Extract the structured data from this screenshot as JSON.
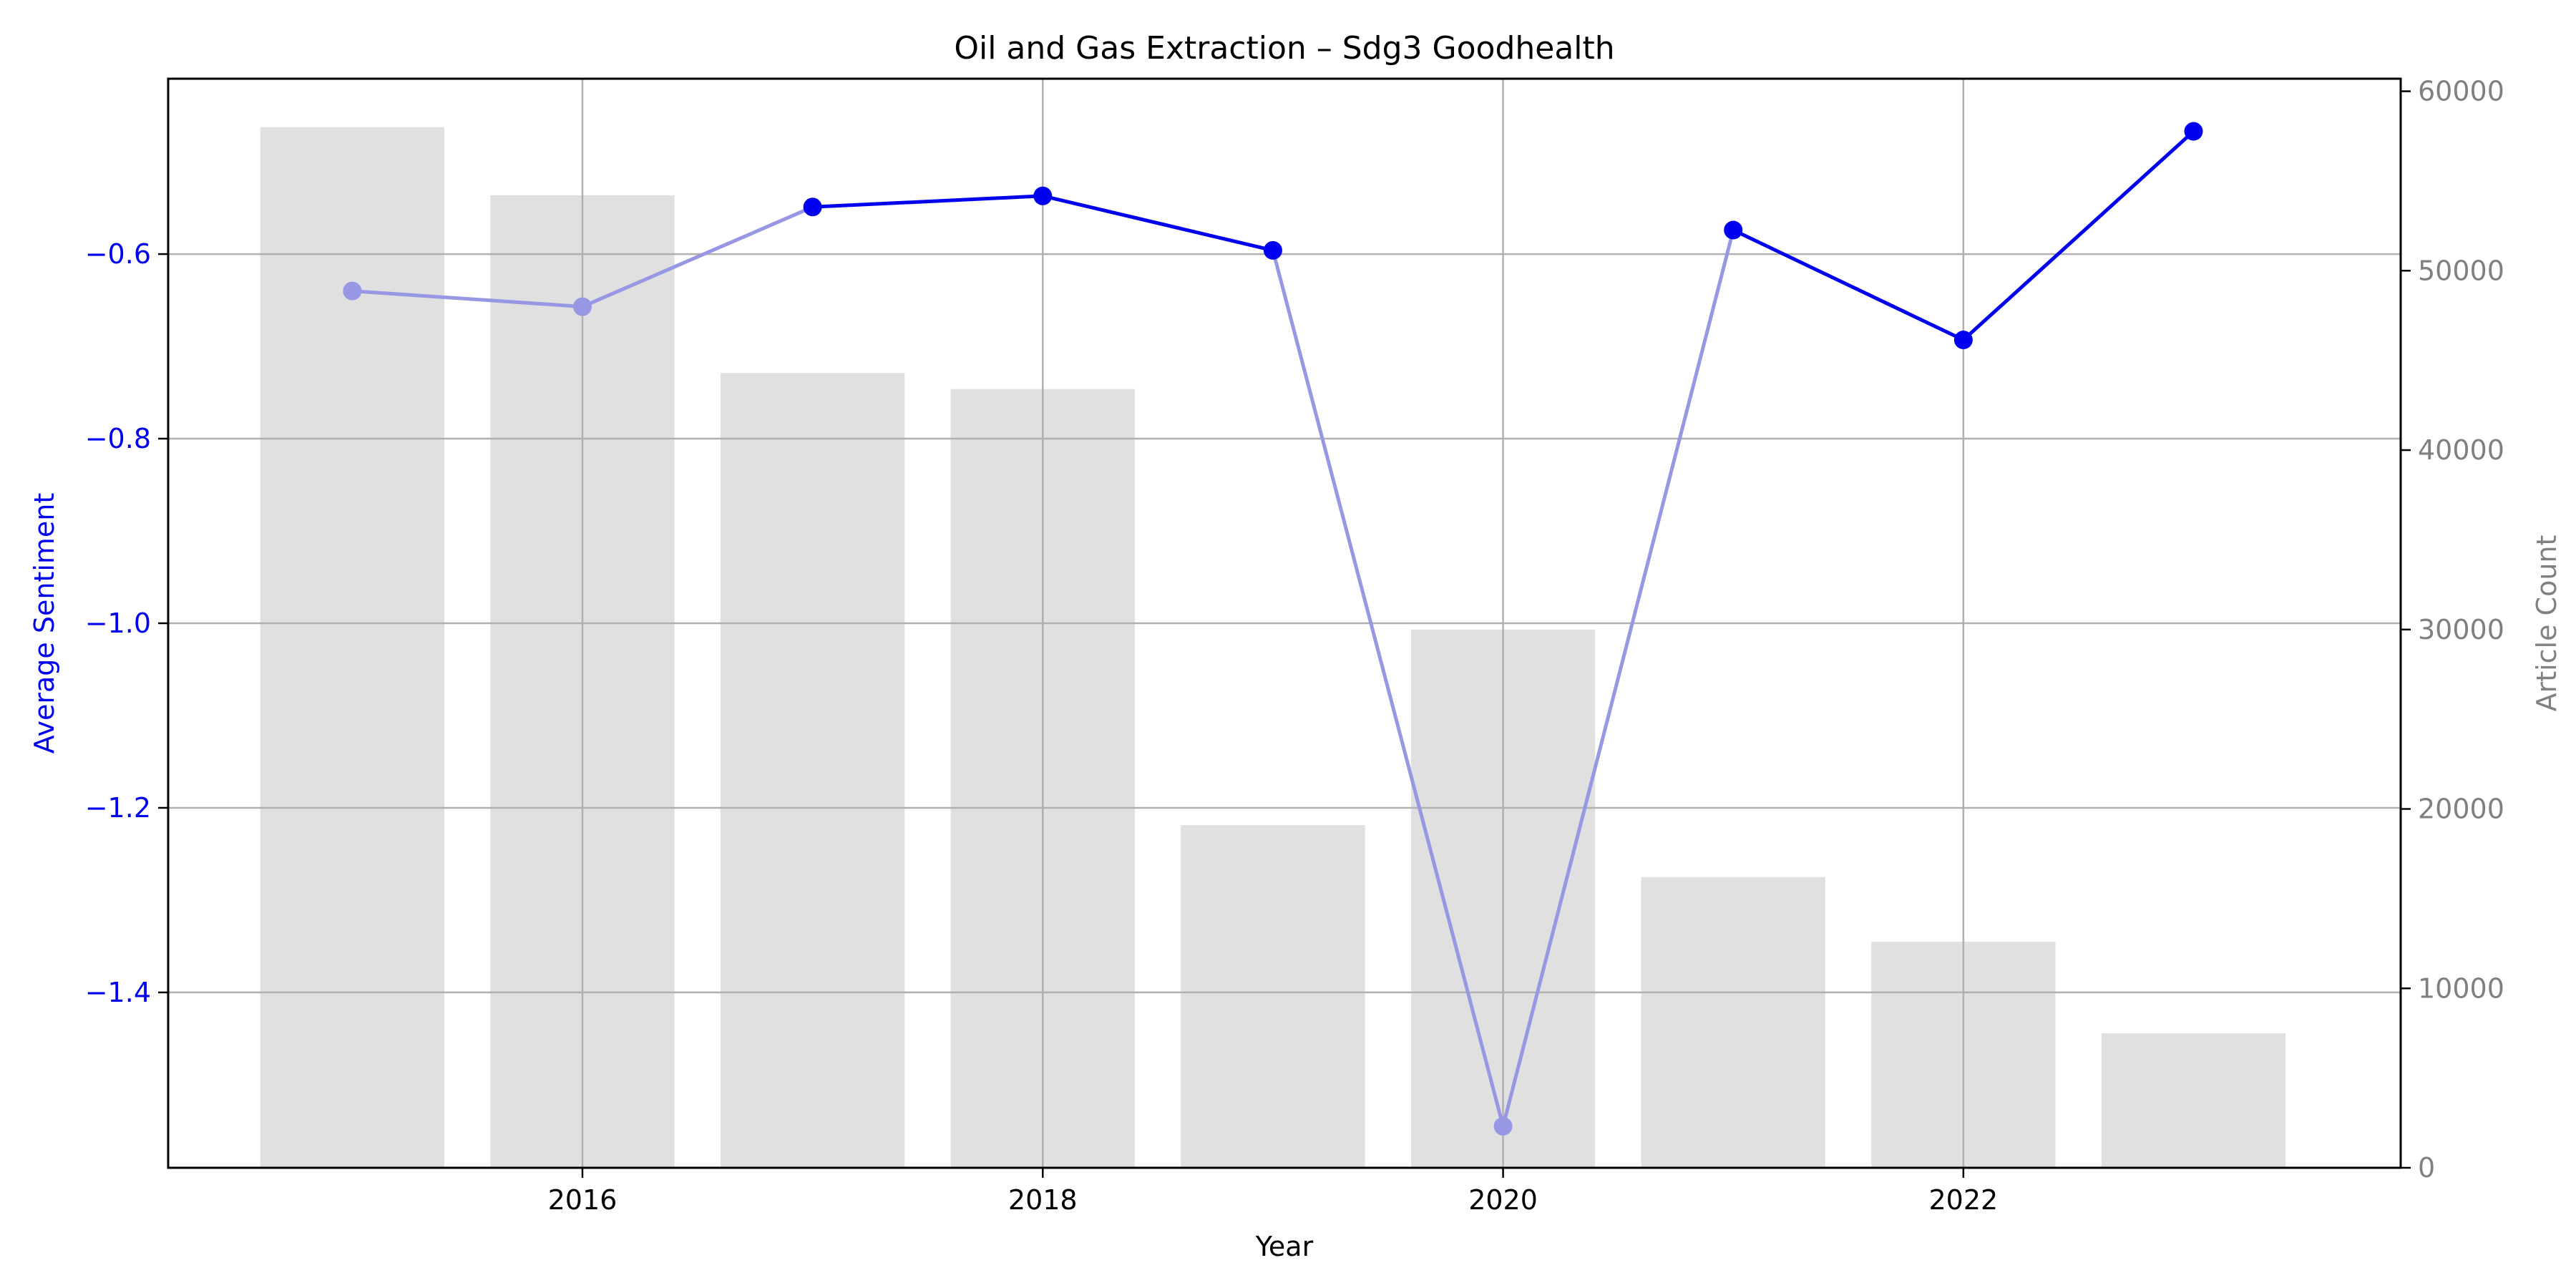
{
  "chart_data": {
    "type": "bar+line",
    "title": "Oil and Gas Extraction – Sdg3 Goodhealth",
    "xlabel": "Year",
    "ylabel_left": "Average Sentiment",
    "ylabel_right": "Article Count",
    "x": [
      2015,
      2016,
      2017,
      2018,
      2019,
      2020,
      2021,
      2022,
      2023
    ],
    "x_ticks": [
      2016,
      2018,
      2020,
      2022
    ],
    "xlim": [
      2014.2,
      2023.9
    ],
    "bars": {
      "name": "Article Count",
      "axis": "right",
      "values": [
        58000,
        54200,
        44300,
        43400,
        19100,
        30000,
        16200,
        12600,
        7500
      ],
      "color": "#e0e0e0",
      "ylim": [
        0,
        60700
      ],
      "ticks": [
        0,
        10000,
        20000,
        30000,
        40000,
        50000,
        60000
      ]
    },
    "line": {
      "name": "Average Sentiment",
      "axis": "left",
      "values": [
        -0.64,
        -0.657,
        -0.549,
        -0.537,
        -0.596,
        -1.545,
        -0.574,
        -0.693,
        -0.467
      ],
      "faded_points": [
        0,
        1,
        5
      ],
      "color": "#0000ee",
      "faded_color": "#9797e3",
      "ylim": [
        -1.59,
        -0.41
      ],
      "ticks": [
        -1.4,
        -1.2,
        -1.0,
        -0.8,
        -0.6
      ],
      "tick_labels": [
        "−1.4",
        "−1.2",
        "−1.0",
        "−0.8",
        "−0.6"
      ]
    },
    "grid": true,
    "colors": {
      "left_axis": "#0000ee",
      "right_axis": "#808080",
      "grid": "#b0b0b0"
    }
  }
}
